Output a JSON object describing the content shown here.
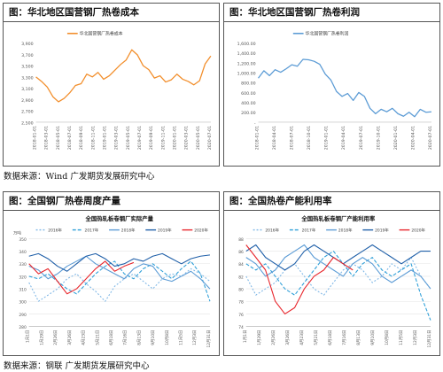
{
  "sources": {
    "top": "数据来源：Wind  广发期货发展研究中心",
    "bottom": "数据来源：钢联  广发期货发展研究中心"
  },
  "panels": {
    "tl": {
      "title": "图：华北地区国营钢厂热卷成本"
    },
    "tr": {
      "title": "图：华北地区国营钢厂热卷利润"
    },
    "bl": {
      "title": "图：全国钢厂热卷周度产量"
    },
    "br": {
      "title": "图：全国热卷产能利用率"
    }
  },
  "colors": {
    "orange": "#f28e2b",
    "blue": "#5b9bd5",
    "light_blue": "#7fb7e6",
    "mid_blue": "#2e9fd8",
    "dark_blue": "#1f5fa8",
    "red": "#e8242a"
  },
  "chart_data": [
    {
      "type": "line",
      "series_name": "华北国营钢厂热卷成本",
      "color": "#f28e2b",
      "ylim": [
        2500,
        3900
      ],
      "yticks": [
        2500,
        2700,
        2900,
        3100,
        3300,
        3500,
        3700,
        3900
      ],
      "ytick_labels": [
        "2,500",
        "2,700",
        "2,900",
        "3,100",
        "3,300",
        "3,500",
        "3,700",
        "3,900"
      ],
      "xtick_labels": [
        "2018-01-01",
        "2018-03-01",
        "2018-05-01",
        "2018-07-01",
        "2018-09-01",
        "2018-11-01",
        "2019-01-01",
        "2019-03-01",
        "2019-05-01",
        "2019-07-01",
        "2019-09-01",
        "2019-11-01",
        "2020-01-01",
        "2020-03-01",
        "2020-05-01",
        "2020-07-01"
      ],
      "x": [
        0,
        1,
        2,
        3,
        4,
        5,
        6,
        7,
        8,
        9,
        10,
        11,
        12,
        13,
        14,
        15,
        16,
        17,
        18,
        19,
        20,
        21,
        22,
        23,
        24,
        25,
        26,
        27,
        28,
        29,
        30,
        31
      ],
      "values": [
        3300,
        3220,
        3120,
        2950,
        2860,
        2920,
        3020,
        3150,
        3180,
        3350,
        3300,
        3380,
        3260,
        3320,
        3420,
        3520,
        3600,
        3780,
        3690,
        3500,
        3430,
        3280,
        3320,
        3210,
        3250,
        3350,
        3260,
        3220,
        3160,
        3230,
        3530,
        3670
      ]
    },
    {
      "type": "line",
      "series_name": "华北国营钢厂热卷利润",
      "color": "#5b9bd5",
      "ylim": [
        0,
        1600
      ],
      "yticks": [
        0,
        200,
        400,
        600,
        800,
        1000,
        1200,
        1400,
        1600
      ],
      "ytick_labels": [
        "-",
        "200.00",
        "400.00",
        "600.00",
        "800.00",
        "1,000.00",
        "1,200.00",
        "1,400.00",
        "1,600.00"
      ],
      "xtick_labels": [
        "2018-01-01",
        "2018-04-01",
        "2018-07-01",
        "2018-10-01",
        "2019-01-01",
        "2019-04-01",
        "2019-07-01",
        "2019-10-01",
        "2020-01-01",
        "2020-04-01",
        "2020-07-01"
      ],
      "x": [
        0,
        1,
        2,
        3,
        4,
        5,
        6,
        7,
        8,
        9,
        10,
        11,
        12,
        13,
        14,
        15,
        16,
        17,
        18,
        19,
        20,
        21,
        22,
        23,
        24,
        25,
        26,
        27,
        28,
        29,
        30,
        31
      ],
      "values": [
        890,
        1040,
        940,
        1060,
        1010,
        1080,
        1160,
        1130,
        1270,
        1260,
        1230,
        1170,
        970,
        850,
        620,
        520,
        580,
        440,
        600,
        520,
        280,
        170,
        260,
        210,
        280,
        170,
        120,
        200,
        110,
        260,
        200,
        210
      ]
    },
    {
      "type": "line",
      "chart_title": "全国热轧板卷钢厂实际产量",
      "unit": "万吨",
      "ylim": [
        280,
        350
      ],
      "yticks": [
        280,
        290,
        300,
        310,
        320,
        330,
        340,
        350
      ],
      "ytick_labels": [
        "280",
        "290",
        "300",
        "310",
        "320",
        "330",
        "340",
        "350"
      ],
      "xtick_labels": [
        "1月1日",
        "1月29日",
        "2月26日",
        "3月26日",
        "4月23日",
        "5月21日",
        "6月18日",
        "7月16日",
        "8月13日",
        "9月10日",
        "10月8日",
        "11月5日",
        "12月3日",
        "12月31日"
      ],
      "series": [
        {
          "name": "2016年",
          "color": "#7fb7e6",
          "dash": "2,2",
          "values": [
            315,
            300,
            305,
            310,
            318,
            322,
            314,
            308,
            300,
            312,
            318,
            322,
            316,
            310,
            318,
            322,
            320,
            326,
            322,
            316
          ]
        },
        {
          "name": "2017年",
          "color": "#2e9fd8",
          "dash": "4,2",
          "values": [
            320,
            318,
            322,
            316,
            310,
            306,
            314,
            322,
            328,
            332,
            322,
            318,
            326,
            330,
            324,
            318,
            326,
            332,
            322,
            300
          ]
        },
        {
          "name": "2018年",
          "color": "#5b9bd5",
          "dash": "",
          "values": [
            328,
            325,
            318,
            322,
            328,
            332,
            336,
            330,
            326,
            322,
            318,
            326,
            330,
            328,
            318,
            316,
            320,
            324,
            318,
            310
          ]
        },
        {
          "name": "2019年",
          "color": "#1f5fa8",
          "dash": "",
          "values": [
            336,
            338,
            334,
            328,
            324,
            330,
            336,
            338,
            334,
            328,
            330,
            334,
            332,
            336,
            338,
            334,
            330,
            334,
            336,
            337
          ]
        },
        {
          "name": "2020年",
          "color": "#e8242a",
          "dash": "",
          "values": [
            330,
            322,
            326,
            316,
            306,
            310,
            318,
            326,
            332,
            324,
            328,
            331
          ]
        }
      ]
    },
    {
      "type": "line",
      "chart_title": "全国热轧板卷钢厂产能利用率",
      "ylim": [
        74,
        88
      ],
      "yticks": [
        74,
        76,
        78,
        80,
        82,
        84,
        86,
        88
      ],
      "ytick_labels": [
        "74",
        "76",
        "78",
        "80",
        "82",
        "84",
        "86",
        "88"
      ],
      "xtick_labels": [
        "1月1日",
        "1月29日",
        "2月26日",
        "3月26日",
        "4月23日",
        "5月21日",
        "6月18日",
        "7月16日",
        "8月13日",
        "9月10日",
        "10月8日",
        "11月5日",
        "12月3日",
        "12月31日"
      ],
      "series": [
        {
          "name": "2016年",
          "color": "#7fb7e6",
          "dash": "2,2",
          "values": [
            82,
            79,
            80,
            81,
            83,
            84,
            82,
            80,
            79,
            81,
            83,
            84,
            83,
            81,
            82,
            84,
            83,
            85,
            82,
            80
          ]
        },
        {
          "name": "2017年",
          "color": "#2e9fd8",
          "dash": "4,2",
          "values": [
            84,
            83,
            84,
            82,
            80,
            79,
            81,
            83,
            85,
            86,
            84,
            82,
            84,
            85,
            83,
            82,
            83,
            84,
            79,
            75
          ]
        },
        {
          "name": "2018年",
          "color": "#5b9bd5",
          "dash": "",
          "values": [
            85,
            84,
            82,
            83,
            85,
            86,
            87,
            85,
            84,
            83,
            82,
            84,
            85,
            84,
            82,
            81,
            82,
            83,
            82,
            80
          ]
        },
        {
          "name": "2019年",
          "color": "#1f5fa8",
          "dash": "",
          "values": [
            86,
            87,
            85,
            84,
            83,
            84,
            86,
            87,
            86,
            85,
            84,
            85,
            86,
            87,
            86,
            85,
            84,
            85,
            86,
            86
          ]
        },
        {
          "name": "2020年",
          "color": "#e8242a",
          "dash": "",
          "values": [
            87,
            85,
            83,
            78,
            76,
            77,
            80,
            82,
            83,
            85,
            84,
            83
          ]
        }
      ]
    }
  ]
}
